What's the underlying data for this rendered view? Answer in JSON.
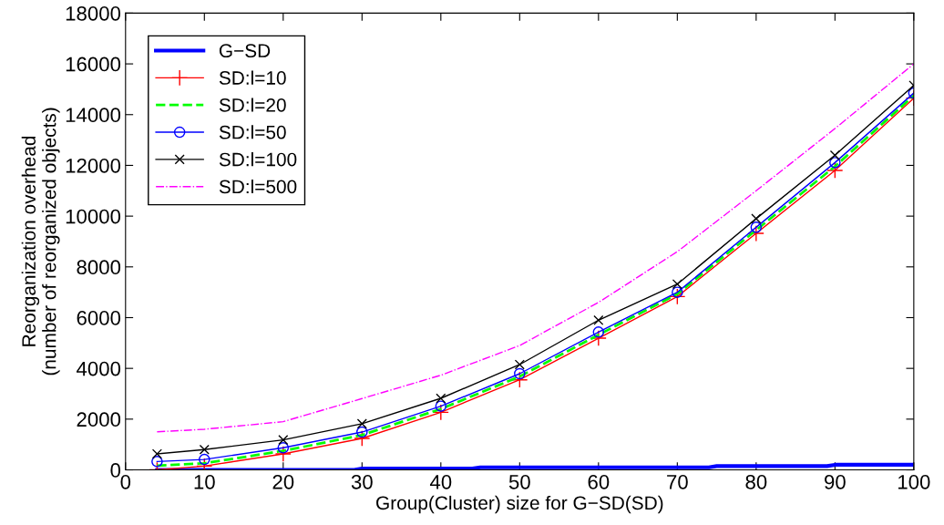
{
  "chart_data": {
    "type": "line",
    "xlabel": "Group(Cluster) size for G−SD(SD)",
    "ylabel": "Reorganization overhead\n(number of reorganized objects)",
    "xlim": [
      0,
      100
    ],
    "xticks": [
      0,
      10,
      20,
      30,
      40,
      50,
      60,
      70,
      80,
      90,
      100
    ],
    "ylim": [
      0,
      18000
    ],
    "yticks": [
      0,
      2000,
      4000,
      6000,
      8000,
      10000,
      12000,
      14000,
      16000,
      18000
    ],
    "grid": false,
    "legend": "top left",
    "series": [
      {
        "name": "G−SD",
        "color": "#0000ff",
        "marker": "none",
        "line_style": "solid",
        "x": [
          4,
          29,
          30,
          44,
          45,
          59,
          60,
          74,
          75,
          89,
          90,
          100
        ],
        "values": [
          0,
          0,
          50,
          50,
          100,
          100,
          100,
          100,
          150,
          150,
          200,
          200
        ]
      },
      {
        "name": "SD:l=10",
        "color": "#ff0000",
        "marker": "cross",
        "line_style": "solid",
        "x": [
          4,
          10,
          20,
          30,
          40,
          50,
          60,
          70,
          80,
          90,
          100
        ],
        "values": [
          0,
          150,
          630,
          1240,
          2270,
          3550,
          5190,
          6830,
          9320,
          11800,
          14650
        ]
      },
      {
        "name": "SD:l=20",
        "color": "#00ff00",
        "marker": "none",
        "line_style": "dashed",
        "x": [
          4,
          10,
          20,
          30,
          40,
          50,
          60,
          70,
          80,
          90,
          100
        ],
        "values": [
          170,
          260,
          750,
          1370,
          2400,
          3680,
          5320,
          6930,
          9450,
          11960,
          14750
        ]
      },
      {
        "name": "SD:l=50",
        "color": "#0000ff",
        "marker": "circle",
        "line_style": "solid",
        "x": [
          4,
          10,
          20,
          30,
          40,
          50,
          60,
          70,
          80,
          90,
          100
        ],
        "values": [
          330,
          410,
          870,
          1490,
          2510,
          3790,
          5430,
          7000,
          9560,
          12110,
          14850
        ]
      },
      {
        "name": "SD:l=100",
        "color": "#000000",
        "marker": "x",
        "line_style": "solid",
        "x": [
          4,
          10,
          20,
          30,
          40,
          50,
          60,
          70,
          80,
          90,
          100
        ],
        "values": [
          630,
          800,
          1180,
          1820,
          2820,
          4150,
          5900,
          7320,
          9900,
          12400,
          15150
        ]
      },
      {
        "name": "SD:l=500",
        "color": "#ff00ff",
        "marker": "none",
        "line_style": "dashdot",
        "x": [
          4,
          10,
          20,
          30,
          40,
          50,
          60,
          70,
          80,
          90,
          100
        ],
        "values": [
          1500,
          1600,
          1900,
          2810,
          3730,
          4900,
          6600,
          8600,
          11000,
          13450,
          16000
        ]
      }
    ]
  }
}
